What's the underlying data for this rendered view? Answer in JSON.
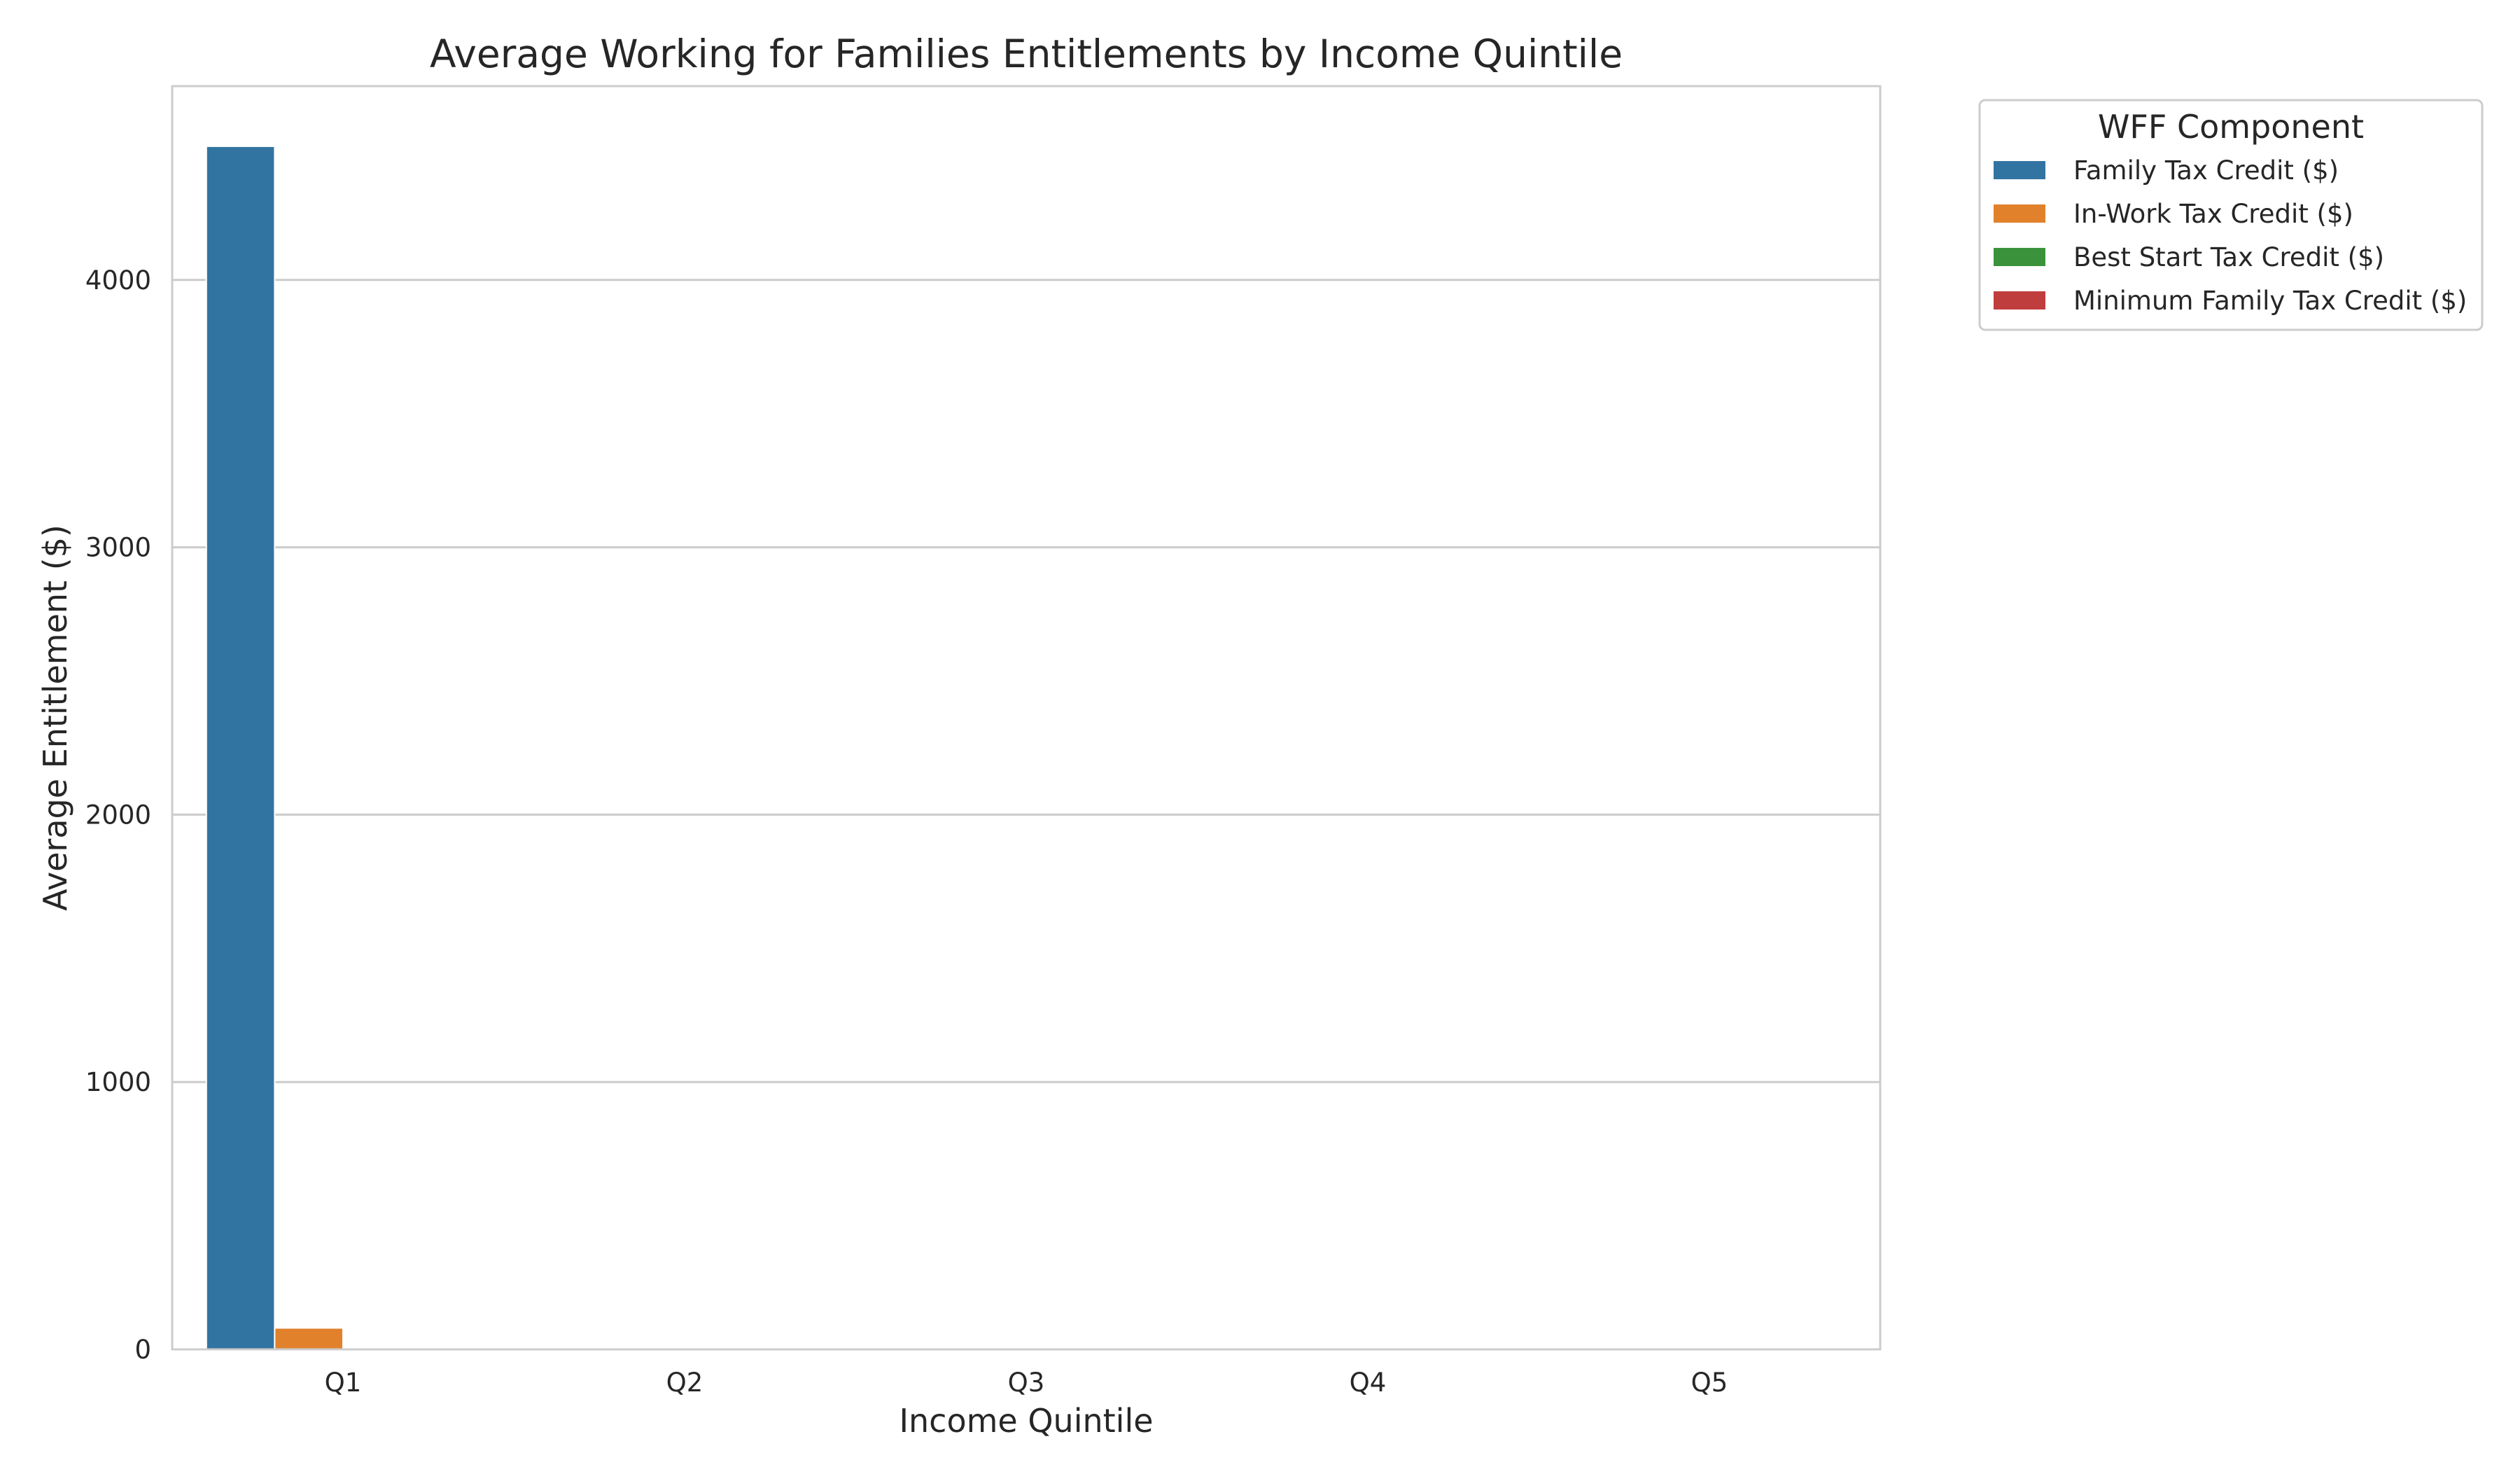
{
  "chart_data": {
    "type": "bar",
    "title": "Average Working for Families Entitlements by Income Quintile",
    "xlabel": "Income Quintile",
    "ylabel": "Average Entitlement ($)",
    "categories": [
      "Q1",
      "Q2",
      "Q3",
      "Q4",
      "Q5"
    ],
    "ylim": [
      0,
      4725
    ],
    "yticks": [
      0,
      1000,
      2000,
      3000,
      4000
    ],
    "grid": "horizontal",
    "legend": {
      "title": "WFF Component",
      "placement": "outside-top-right"
    },
    "series": [
      {
        "name": "Family Tax Credit ($)",
        "color": "#3274a1",
        "values": [
          4500,
          0,
          0,
          0,
          0
        ]
      },
      {
        "name": "In-Work Tax Credit ($)",
        "color": "#e1812c",
        "values": [
          80,
          0,
          0,
          0,
          0
        ]
      },
      {
        "name": "Best Start Tax Credit ($)",
        "color": "#3a923a",
        "values": [
          0,
          0,
          0,
          0,
          0
        ]
      },
      {
        "name": "Minimum Family Tax Credit ($)",
        "color": "#c03d3e",
        "values": [
          0,
          0,
          0,
          0,
          0
        ]
      }
    ]
  }
}
